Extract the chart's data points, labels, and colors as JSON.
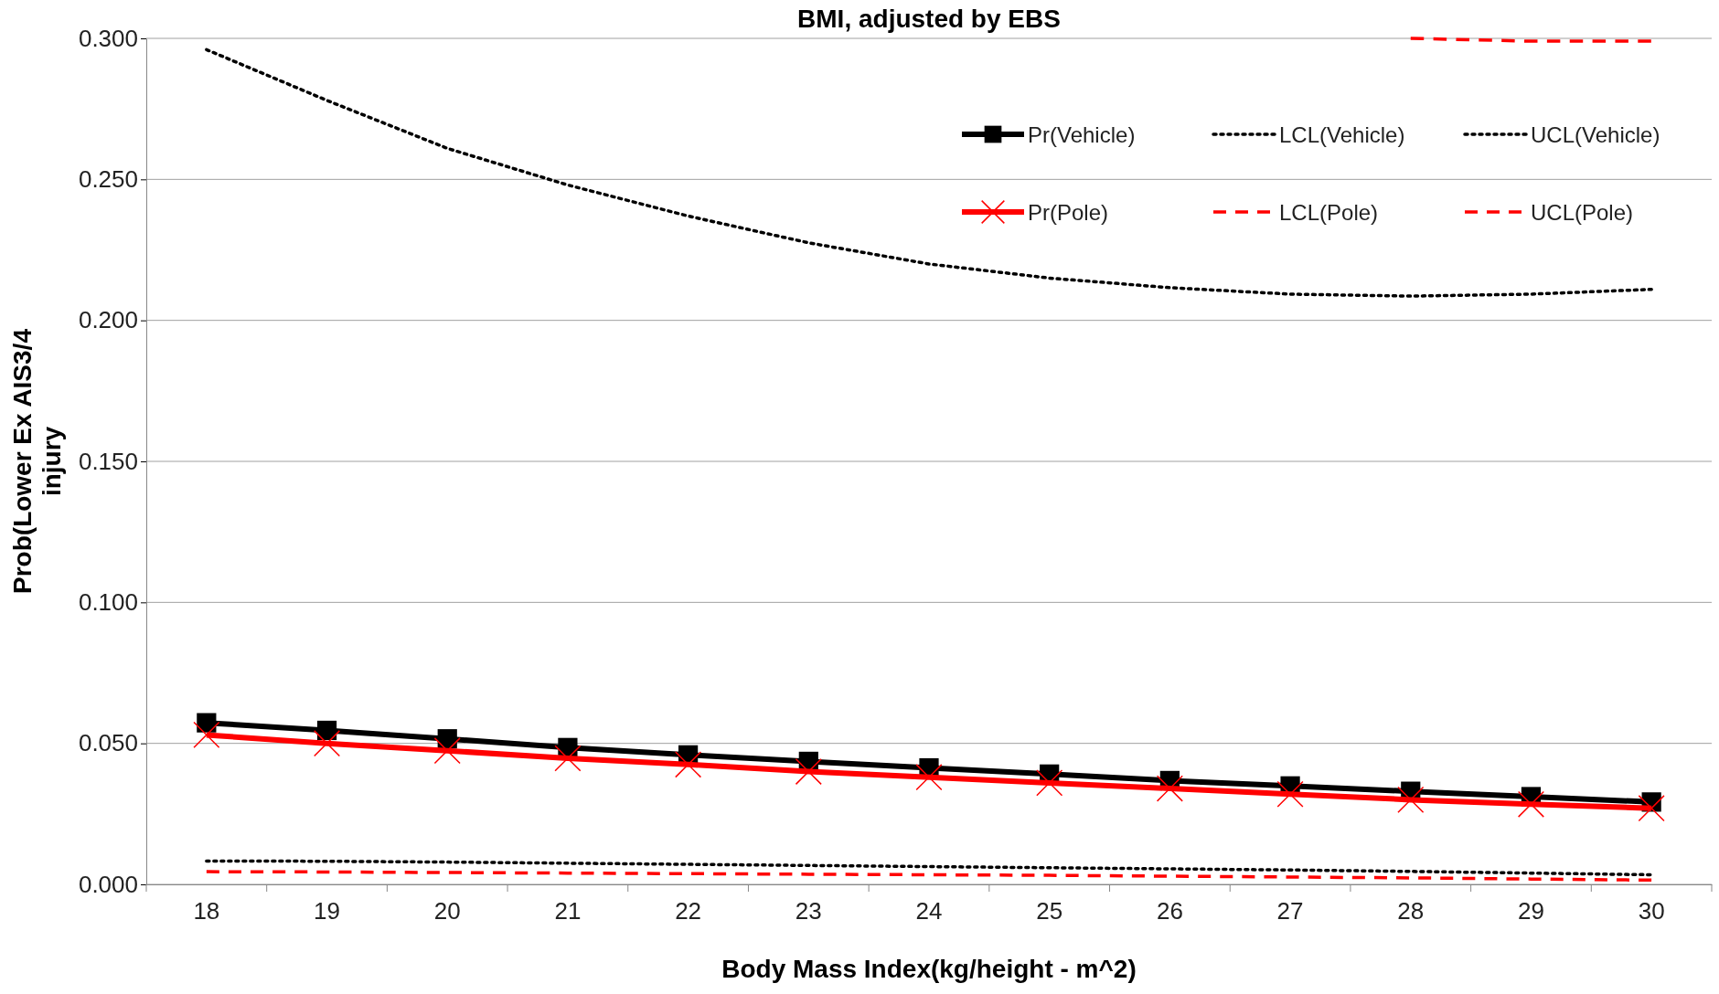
{
  "chart_data": {
    "type": "line",
    "title": "BMI, adjusted by EBS",
    "xlabel": "Body Mass Index(kg/height - m^2)",
    "ylabel": "Prob(Lower Ex AIS3/4 injury",
    "categories": [
      "18",
      "19",
      "20",
      "21",
      "22",
      "23",
      "24",
      "25",
      "26",
      "27",
      "28",
      "29",
      "30"
    ],
    "ylim": [
      0,
      0.3
    ],
    "yticks": [
      {
        "value": 0,
        "label": "0.000"
      },
      {
        "value": 0.05,
        "label": "0.050"
      },
      {
        "value": 0.1,
        "label": "0.100"
      },
      {
        "value": 0.15,
        "label": "0.150"
      },
      {
        "value": 0.2,
        "label": "0.200"
      },
      {
        "value": 0.25,
        "label": "0.250"
      },
      {
        "value": 0.3,
        "label": "0.300"
      }
    ],
    "grid": "y",
    "legend": "top right",
    "series": [
      {
        "name": "Pr(Vehicle)",
        "color": "#000000",
        "marker": "square",
        "line_style": "solid",
        "values": [
          0.0573,
          0.0546,
          0.0516,
          0.0485,
          0.0459,
          0.0436,
          0.0413,
          0.0391,
          0.0368,
          0.0349,
          0.033,
          0.0311,
          0.0292
        ]
      },
      {
        "name": "LCL(Vehicle)",
        "color": "#000000",
        "marker": "none",
        "line_style": "dotted",
        "values": [
          0.0083,
          0.0082,
          0.0079,
          0.0075,
          0.0071,
          0.0067,
          0.0063,
          0.0059,
          0.0055,
          0.0051,
          0.0046,
          0.004,
          0.0034
        ]
      },
      {
        "name": "UCL(Vehicle)",
        "color": "#000000",
        "marker": "none",
        "line_style": "dotted",
        "values": [
          0.296,
          0.278,
          0.261,
          0.248,
          0.237,
          0.2275,
          0.22,
          0.215,
          0.2116,
          0.2093,
          0.2086,
          0.2093,
          0.211
        ]
      },
      {
        "name": "Pr(Pole)",
        "color": "#ff0000",
        "marker": "cross",
        "line_style": "solid",
        "values": [
          0.053,
          0.05,
          0.0474,
          0.0447,
          0.0425,
          0.04,
          0.038,
          0.036,
          0.034,
          0.032,
          0.03,
          0.0284,
          0.027
        ]
      },
      {
        "name": "LCL(Pole)",
        "color": "#ff0000",
        "marker": "none",
        "line_style": "dashed",
        "values": [
          0.0045,
          0.0044,
          0.0042,
          0.004,
          0.0038,
          0.0036,
          0.0034,
          0.0032,
          0.0029,
          0.0026,
          0.0023,
          0.0019,
          0.0015
        ]
      },
      {
        "name": "UCL(Pole)",
        "color": "#ff0000",
        "marker": "none",
        "line_style": "dashed",
        "values": [
          null,
          null,
          null,
          null,
          null,
          null,
          null,
          null,
          null,
          null,
          0.3,
          0.299,
          0.299
        ]
      }
    ]
  }
}
